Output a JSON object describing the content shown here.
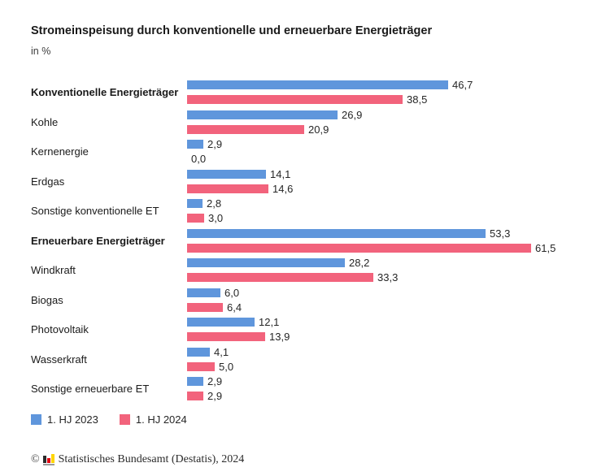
{
  "chart_data": {
    "type": "bar",
    "orientation": "horizontal",
    "title": "Stromeinspeisung durch konventionelle und erneuerbare Energieträger",
    "subtitle": "in %",
    "unit": "%",
    "xlim": [
      0,
      65
    ],
    "grid": false,
    "legend_position": "bottom-left",
    "value_label_format": "one decimal, comma as decimal separator",
    "categories": [
      {
        "label": "Konventionelle Energieträger",
        "bold": true
      },
      {
        "label": "Kohle",
        "bold": false
      },
      {
        "label": "Kernenergie",
        "bold": false
      },
      {
        "label": "Erdgas",
        "bold": false
      },
      {
        "label": "Sonstige konventionelle ET",
        "bold": false
      },
      {
        "label": "Erneuerbare Energieträger",
        "bold": true
      },
      {
        "label": "Windkraft",
        "bold": false
      },
      {
        "label": "Biogas",
        "bold": false
      },
      {
        "label": "Photovoltaik",
        "bold": false
      },
      {
        "label": "Wasserkraft",
        "bold": false
      },
      {
        "label": "Sonstige erneuerbare ET",
        "bold": false
      }
    ],
    "series": [
      {
        "name": "1. HJ 2023",
        "color": "#5F96DC",
        "values": [
          46.7,
          26.9,
          2.9,
          14.1,
          2.8,
          53.3,
          28.2,
          6.0,
          12.1,
          4.1,
          2.9
        ]
      },
      {
        "name": "1. HJ 2024",
        "color": "#F2637C",
        "values": [
          38.5,
          20.9,
          0.0,
          14.6,
          3.0,
          61.5,
          33.3,
          6.4,
          13.9,
          5.0,
          2.9
        ]
      }
    ]
  },
  "footer": {
    "copyright": "©",
    "logo_icon": "destatis-bar-chart-logo",
    "text": "Statistisches Bundesamt (Destatis), 2024"
  }
}
